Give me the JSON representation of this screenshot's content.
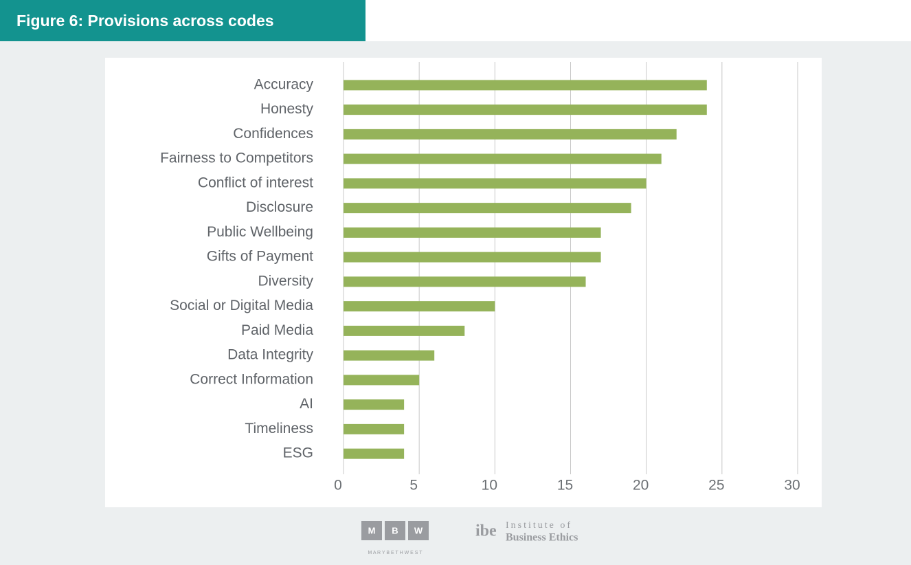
{
  "chart_data": {
    "type": "bar",
    "orientation": "horizontal",
    "title": "Figure 6: Provisions across codes",
    "categories": [
      "Accuracy",
      "Honesty",
      "Confidences",
      "Fairness to Competitors",
      "Conflict of interest",
      "Disclosure",
      "Public Wellbeing",
      "Gifts of Payment",
      "Diversity",
      "Social or Digital Media",
      "Paid Media",
      "Data Integrity",
      "Correct Information",
      "AI",
      "Timeliness",
      "ESG"
    ],
    "values": [
      24,
      24,
      22,
      21,
      20,
      19,
      17,
      17,
      16,
      10,
      8,
      6,
      5,
      4,
      4,
      4
    ],
    "color": "#95b35a",
    "xlim": [
      0,
      30
    ],
    "xticks": [
      0,
      5,
      10,
      15,
      20,
      25,
      30
    ],
    "grid": true
  },
  "footer": {
    "mbw_letters": [
      "M",
      "B",
      "W"
    ],
    "mbw_name": "M A R Y B E T H W E S T",
    "ibe_mark": "ibe",
    "ibe_line1": "Institute of",
    "ibe_line2": "Business Ethics"
  }
}
